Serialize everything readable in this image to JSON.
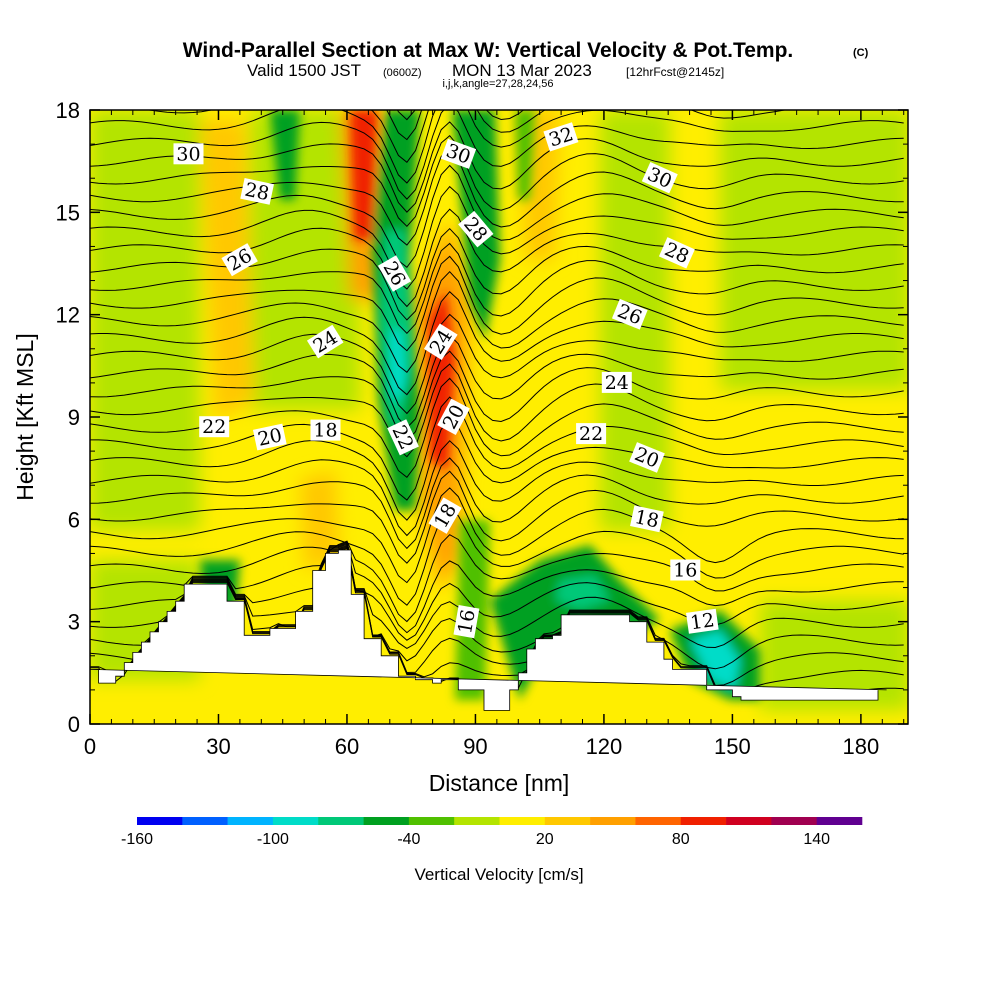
{
  "title": {
    "main": "Wind-Parallel Section at Max W: Vertical Velocity & Pot.Temp.",
    "copyright": "(C)",
    "valid_prefix": "Valid 1500 JST",
    "valid_utc": "(0600Z)",
    "valid_date": "MON 13 Mar 2023",
    "forecast": "[12hrFcst@2145z]",
    "indices": "i,j,k,angle=27,28,24,56"
  },
  "chart_data": {
    "type": "heatmap",
    "xlabel": "Distance [nm]",
    "ylabel": "Height [Kft MSL]",
    "xlim": [
      0,
      191
    ],
    "ylim": [
      0,
      18
    ],
    "x_ticks": [
      "0",
      "30",
      "60",
      "90",
      "120",
      "150",
      "180"
    ],
    "y_ticks": [
      "0",
      "3",
      "6",
      "9",
      "12",
      "15",
      "18"
    ],
    "colorbar": {
      "label": "Vertical Velocity [cm/s]",
      "tick_labels": [
        "-160",
        "-100",
        "-40",
        "20",
        "80",
        "140"
      ],
      "tick_values": [
        -160,
        -100,
        -40,
        20,
        80,
        140
      ],
      "range": [
        -160,
        160
      ],
      "colors": [
        "#0000f0",
        "#0060ff",
        "#00b4ff",
        "#00dcc8",
        "#00c878",
        "#00a020",
        "#50c000",
        "#b4e400",
        "#ffee00",
        "#ffc800",
        "#ffa000",
        "#ff6400",
        "#f02000",
        "#d00020",
        "#a00050",
        "#600090"
      ]
    },
    "terrain_profile_x": [
      0,
      2,
      2,
      4,
      4,
      6,
      6,
      8,
      8,
      10,
      10,
      12,
      12,
      14,
      14,
      16,
      16,
      18,
      18,
      20,
      20,
      22,
      22,
      32,
      32,
      36,
      36,
      42,
      42,
      48,
      48,
      52,
      52,
      55,
      55,
      58,
      58,
      61,
      61,
      64,
      64,
      68,
      68,
      72,
      72,
      76,
      76,
      80,
      80,
      82,
      82,
      86,
      86,
      92,
      92,
      96,
      96,
      98,
      98,
      100,
      100,
      102,
      102,
      104,
      104,
      108,
      108,
      110,
      110,
      114,
      114,
      116,
      116,
      122,
      122,
      126,
      126,
      130,
      130,
      134,
      134,
      136,
      136,
      140,
      140,
      142,
      142,
      144,
      144,
      150,
      150,
      152,
      152,
      156,
      156,
      162,
      162,
      168,
      168,
      174,
      174,
      178,
      178,
      184,
      184,
      186,
      186,
      191
    ],
    "terrain_profile_kft": [
      1.6,
      1.6,
      1.2,
      1.2,
      1.2,
      1.2,
      1.4,
      1.4,
      1.8,
      1.8,
      2.1,
      2.1,
      2.4,
      2.4,
      2.7,
      2.7,
      3.0,
      3.0,
      3.3,
      3.3,
      3.6,
      3.6,
      4.1,
      4.1,
      3.6,
      3.6,
      2.6,
      2.6,
      2.8,
      2.8,
      3.3,
      3.3,
      4.5,
      4.5,
      5.0,
      5.0,
      5.1,
      5.1,
      3.8,
      3.8,
      2.5,
      2.5,
      2.0,
      2.0,
      1.4,
      1.4,
      1.3,
      1.3,
      1.2,
      1.2,
      1.3,
      1.3,
      1.0,
      1.0,
      0.4,
      0.4,
      0.4,
      0.4,
      1.0,
      1.0,
      1.5,
      1.5,
      2.2,
      2.2,
      2.5,
      2.5,
      2.6,
      2.6,
      3.2,
      3.2,
      3.2,
      3.2,
      3.2,
      3.2,
      3.2,
      3.2,
      3.0,
      3.0,
      2.4,
      2.4,
      1.9,
      1.9,
      1.6,
      1.6,
      1.6,
      1.6,
      1.6,
      1.6,
      1.0,
      1.0,
      0.8,
      0.8,
      0.7,
      0.7,
      0.7,
      0.7,
      0.7,
      0.7,
      0.7,
      0.7,
      0.7,
      0.7,
      0.7,
      0.7,
      1.0,
      1.0,
      1.0
    ],
    "contour_labels": [
      {
        "text": "30",
        "x": 23,
        "y": 16.7,
        "angle": 0
      },
      {
        "text": "28",
        "x": 39,
        "y": 15.6,
        "angle": 12
      },
      {
        "text": "26",
        "x": 35,
        "y": 13.6,
        "angle": -30
      },
      {
        "text": "24",
        "x": 55,
        "y": 11.2,
        "angle": -32
      },
      {
        "text": "22",
        "x": 29,
        "y": 8.7,
        "angle": 0
      },
      {
        "text": "20",
        "x": 42,
        "y": 8.4,
        "angle": -12
      },
      {
        "text": "18",
        "x": 55,
        "y": 8.6,
        "angle": 0
      },
      {
        "text": "26",
        "x": 71,
        "y": 13.2,
        "angle": 60
      },
      {
        "text": "30",
        "x": 86,
        "y": 16.7,
        "angle": 20
      },
      {
        "text": "28",
        "x": 90,
        "y": 14.5,
        "angle": 50
      },
      {
        "text": "24",
        "x": 82,
        "y": 11.2,
        "angle": -58
      },
      {
        "text": "22",
        "x": 73,
        "y": 8.4,
        "angle": 65
      },
      {
        "text": "20",
        "x": 85,
        "y": 9.0,
        "angle": -62
      },
      {
        "text": "18",
        "x": 83,
        "y": 6.1,
        "angle": -60
      },
      {
        "text": "16",
        "x": 88,
        "y": 3.0,
        "angle": -80
      },
      {
        "text": "32",
        "x": 110,
        "y": 17.2,
        "angle": -18
      },
      {
        "text": "30",
        "x": 133,
        "y": 16.0,
        "angle": 24
      },
      {
        "text": "28",
        "x": 137,
        "y": 13.8,
        "angle": 24
      },
      {
        "text": "26",
        "x": 126,
        "y": 12.0,
        "angle": 22
      },
      {
        "text": "24",
        "x": 123,
        "y": 10.0,
        "angle": 0
      },
      {
        "text": "22",
        "x": 117,
        "y": 8.5,
        "angle": 0
      },
      {
        "text": "20",
        "x": 130,
        "y": 7.8,
        "angle": 22
      },
      {
        "text": "18",
        "x": 130,
        "y": 6.0,
        "angle": 12
      },
      {
        "text": "16",
        "x": 139,
        "y": 4.5,
        "angle": 0
      },
      {
        "text": "12",
        "x": 143,
        "y": 3.0,
        "angle": -8
      }
    ]
  }
}
